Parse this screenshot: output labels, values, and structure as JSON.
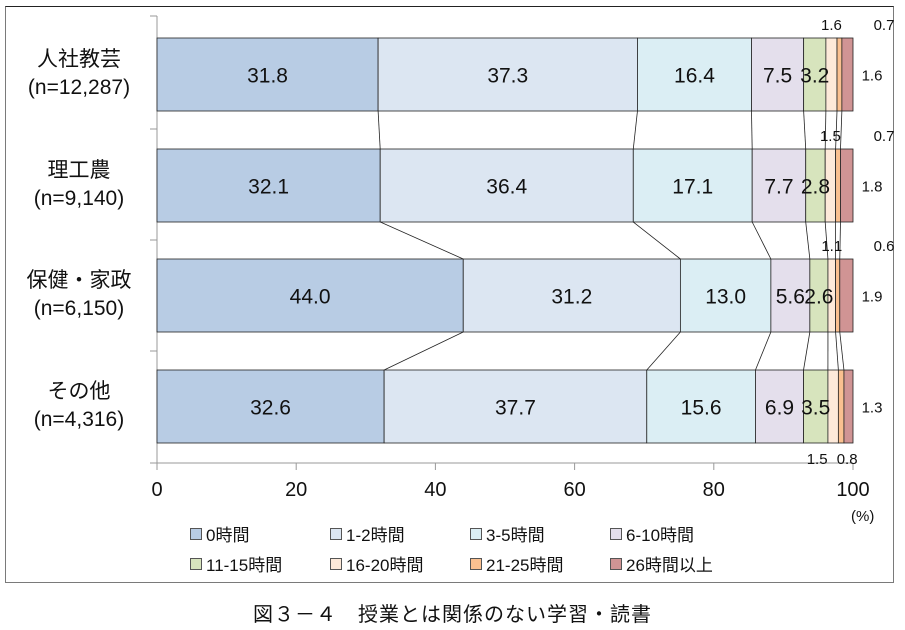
{
  "caption": "図３－４　授業とは関係のない学習・読書",
  "unit": "(%)",
  "colors": [
    "#b8cce4",
    "#dce6f2",
    "#dbeef4",
    "#e4dfec",
    "#d7e4bd",
    "#fde9d9",
    "#fac090",
    "#d09494"
  ],
  "categories": [
    {
      "name": "人社教芸",
      "n": "(n=12,287)"
    },
    {
      "name": "理工農",
      "n": "(n=9,140)"
    },
    {
      "name": "保健・家政",
      "n": "(n=6,150)"
    },
    {
      "name": "その他",
      "n": "(n=4,316)"
    }
  ],
  "x_ticks": [
    "0",
    "20",
    "40",
    "60",
    "80",
    "100"
  ],
  "legend": [
    "0時間",
    "1-2時間",
    "3-5時間",
    "6-10時間",
    "11-15時間",
    "16-20時間",
    "21-25時間",
    "26時間以上"
  ],
  "chart_data": {
    "type": "bar",
    "orientation": "horizontal",
    "stacked": true,
    "percent": true,
    "title": "図３－４　授業とは関係のない学習・読書",
    "xlabel": "(%)",
    "ylabel": "",
    "xlim": [
      0,
      100
    ],
    "x_ticks": [
      0,
      20,
      40,
      60,
      80,
      100
    ],
    "categories": [
      "人社教芸 (n=12,287)",
      "理工農 (n=9,140)",
      "保健・家政 (n=6,150)",
      "その他 (n=4,316)"
    ],
    "series": [
      {
        "name": "0時間",
        "values": [
          31.8,
          32.1,
          44.0,
          32.6
        ]
      },
      {
        "name": "1-2時間",
        "values": [
          37.3,
          36.4,
          31.2,
          37.7
        ]
      },
      {
        "name": "3-5時間",
        "values": [
          16.4,
          17.1,
          13.0,
          15.6
        ]
      },
      {
        "name": "6-10時間",
        "values": [
          7.5,
          7.7,
          5.6,
          6.9
        ]
      },
      {
        "name": "11-15時間",
        "values": [
          3.2,
          2.8,
          2.6,
          3.5
        ]
      },
      {
        "name": "16-20時間",
        "values": [
          1.6,
          1.5,
          1.1,
          1.5
        ]
      },
      {
        "name": "21-25時間",
        "values": [
          0.7,
          0.7,
          0.6,
          0.8
        ]
      },
      {
        "name": "26時間以上",
        "values": [
          1.6,
          1.8,
          1.9,
          1.3
        ]
      }
    ],
    "legend_position": "bottom",
    "series_lines": true,
    "grid": false
  }
}
